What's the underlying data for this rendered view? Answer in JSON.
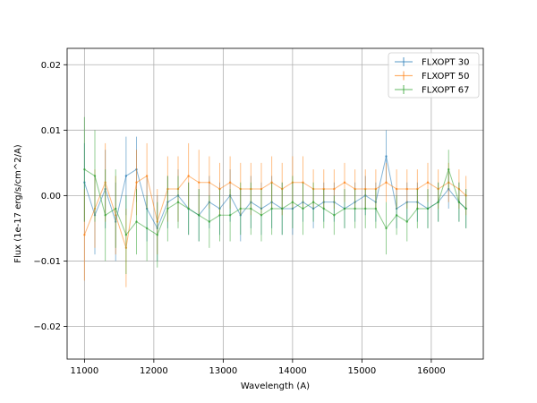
{
  "chart_data": {
    "type": "line",
    "title": "",
    "xlabel": "Wavelength (A)",
    "ylabel": "Flux (1e-17 erg/s/cm^2/A)",
    "xlim": [
      10750,
      16750
    ],
    "ylim": [
      -0.025,
      0.0225
    ],
    "xticks": [
      11000,
      12000,
      13000,
      14000,
      15000,
      16000
    ],
    "xtick_labels": [
      "11000",
      "12000",
      "13000",
      "14000",
      "15000",
      "16000"
    ],
    "yticks": [
      -0.02,
      -0.01,
      0.0,
      0.01,
      0.02
    ],
    "ytick_labels": [
      "−0.02",
      "−0.01",
      "0.00",
      "0.01",
      "0.02"
    ],
    "grid": true,
    "legend_position": "top-right",
    "error_bars": true,
    "series": [
      {
        "name": "FLXOPT 30",
        "color": "#1f77b4",
        "x": [
          11000,
          11150,
          11300,
          11450,
          11600,
          11750,
          11900,
          12050,
          12200,
          12350,
          12500,
          12650,
          12800,
          12950,
          13100,
          13250,
          13400,
          13550,
          13700,
          13850,
          14000,
          14150,
          14300,
          14450,
          14600,
          14750,
          14900,
          15050,
          15200,
          15350,
          15500,
          15650,
          15800,
          15950,
          16100,
          16250,
          16400,
          16500
        ],
        "values": [
          0.002,
          -0.003,
          0.001,
          -0.004,
          0.003,
          0.004,
          -0.002,
          -0.005,
          -0.001,
          0.0,
          -0.002,
          -0.003,
          -0.001,
          -0.002,
          0.0,
          -0.003,
          -0.001,
          -0.002,
          -0.001,
          -0.002,
          -0.002,
          -0.001,
          -0.002,
          -0.001,
          -0.001,
          -0.002,
          -0.001,
          0.0,
          -0.001,
          0.006,
          -0.002,
          -0.001,
          -0.001,
          -0.002,
          -0.001,
          0.001,
          -0.001,
          -0.002
        ],
        "error": [
          0.006,
          0.006,
          0.006,
          0.006,
          0.006,
          0.005,
          0.005,
          0.005,
          0.004,
          0.004,
          0.004,
          0.004,
          0.004,
          0.004,
          0.004,
          0.004,
          0.004,
          0.004,
          0.004,
          0.004,
          0.004,
          0.003,
          0.003,
          0.003,
          0.003,
          0.003,
          0.003,
          0.003,
          0.003,
          0.004,
          0.003,
          0.003,
          0.003,
          0.003,
          0.003,
          0.003,
          0.003,
          0.003
        ]
      },
      {
        "name": "FLXOPT 50",
        "color": "#ff7f0e",
        "x": [
          11000,
          11150,
          11300,
          11450,
          11600,
          11750,
          11900,
          12050,
          12200,
          12350,
          12500,
          12650,
          12800,
          12950,
          13100,
          13250,
          13400,
          13550,
          13700,
          13850,
          14000,
          14150,
          14300,
          14450,
          14600,
          14750,
          14900,
          15050,
          15200,
          15350,
          15500,
          15650,
          15800,
          15950,
          16100,
          16250,
          16400,
          16500
        ],
        "values": [
          -0.006,
          -0.002,
          0.002,
          -0.003,
          -0.008,
          0.002,
          0.003,
          -0.004,
          0.001,
          0.001,
          0.003,
          0.002,
          0.002,
          0.001,
          0.002,
          0.001,
          0.001,
          0.001,
          0.002,
          0.001,
          0.002,
          0.002,
          0.001,
          0.001,
          0.001,
          0.002,
          0.001,
          0.001,
          0.001,
          0.002,
          0.001,
          0.001,
          0.001,
          0.002,
          0.001,
          0.002,
          0.001,
          0.0
        ],
        "error": [
          0.007,
          0.006,
          0.006,
          0.006,
          0.006,
          0.005,
          0.005,
          0.005,
          0.005,
          0.005,
          0.005,
          0.005,
          0.004,
          0.004,
          0.004,
          0.004,
          0.004,
          0.004,
          0.004,
          0.004,
          0.004,
          0.004,
          0.003,
          0.003,
          0.003,
          0.003,
          0.003,
          0.003,
          0.003,
          0.003,
          0.003,
          0.003,
          0.003,
          0.003,
          0.003,
          0.003,
          0.003,
          0.003
        ]
      },
      {
        "name": "FLXOPT 67",
        "color": "#2ca02c",
        "x": [
          11000,
          11150,
          11300,
          11450,
          11600,
          11750,
          11900,
          12050,
          12200,
          12350,
          12500,
          12650,
          12800,
          12950,
          13100,
          13250,
          13400,
          13550,
          13700,
          13850,
          14000,
          14150,
          14300,
          14450,
          14600,
          14750,
          14900,
          15050,
          15200,
          15350,
          15500,
          15650,
          15800,
          15950,
          16100,
          16250,
          16400,
          16500
        ],
        "values": [
          0.004,
          0.003,
          -0.003,
          -0.002,
          -0.006,
          -0.004,
          -0.005,
          -0.006,
          -0.002,
          -0.001,
          -0.002,
          -0.003,
          -0.004,
          -0.003,
          -0.003,
          -0.002,
          -0.002,
          -0.003,
          -0.002,
          -0.002,
          -0.001,
          -0.002,
          -0.001,
          -0.002,
          -0.003,
          -0.002,
          -0.002,
          -0.002,
          -0.002,
          -0.005,
          -0.003,
          -0.004,
          -0.002,
          -0.002,
          -0.001,
          0.004,
          -0.001,
          -0.002
        ],
        "error": [
          0.008,
          0.007,
          0.007,
          0.006,
          0.006,
          0.005,
          0.005,
          0.005,
          0.005,
          0.004,
          0.004,
          0.004,
          0.004,
          0.004,
          0.004,
          0.004,
          0.004,
          0.004,
          0.004,
          0.004,
          0.004,
          0.004,
          0.003,
          0.003,
          0.003,
          0.003,
          0.003,
          0.003,
          0.003,
          0.004,
          0.003,
          0.003,
          0.003,
          0.003,
          0.003,
          0.003,
          0.003,
          0.003
        ]
      }
    ]
  }
}
